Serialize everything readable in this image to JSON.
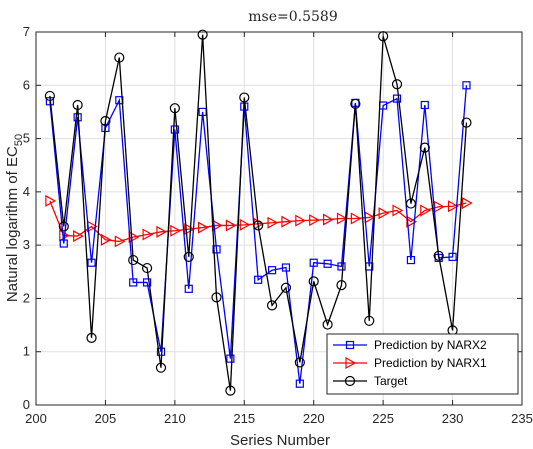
{
  "chart_data": {
    "type": "line",
    "title": "mse=0.5589",
    "xlabel": "Series Number",
    "ylabel_main": "Natural logarithm of EC",
    "ylabel_sub": "50",
    "xlim": [
      200,
      235
    ],
    "ylim": [
      0,
      7
    ],
    "xticks": [
      200,
      205,
      210,
      215,
      220,
      225,
      230,
      235
    ],
    "yticks": [
      0,
      1,
      2,
      3,
      4,
      5,
      6,
      7
    ],
    "grid": true,
    "legend_position": "bottom-right",
    "x": [
      201,
      202,
      203,
      204,
      205,
      206,
      207,
      208,
      209,
      210,
      211,
      212,
      213,
      214,
      215,
      216,
      217,
      218,
      219,
      220,
      221,
      222,
      223,
      224,
      225,
      226,
      227,
      228,
      229,
      230,
      231
    ],
    "series": [
      {
        "name": "Prediction by NARX2",
        "color": "#0000ff",
        "marker": "square",
        "values": [
          5.7,
          3.03,
          5.4,
          2.67,
          5.2,
          5.72,
          2.3,
          2.3,
          1.0,
          5.17,
          2.18,
          5.5,
          2.92,
          0.87,
          5.6,
          2.35,
          2.53,
          2.58,
          0.4,
          2.67,
          2.65,
          2.6,
          5.67,
          2.6,
          5.62,
          5.75,
          2.72,
          5.63,
          2.76,
          2.78,
          6.0
        ]
      },
      {
        "name": "Prediction by NARX1",
        "color": "#ff0000",
        "marker": "triangle-right",
        "values": [
          3.83,
          3.18,
          3.17,
          3.35,
          3.1,
          3.07,
          3.15,
          3.2,
          3.25,
          3.27,
          3.3,
          3.33,
          3.37,
          3.37,
          3.38,
          3.4,
          3.42,
          3.44,
          3.46,
          3.47,
          3.48,
          3.5,
          3.5,
          3.52,
          3.6,
          3.65,
          3.44,
          3.65,
          3.72,
          3.73,
          3.79
        ]
      },
      {
        "name": "Target",
        "color": "#000000",
        "marker": "circle",
        "values": [
          5.8,
          3.35,
          5.63,
          1.26,
          5.33,
          6.52,
          2.72,
          2.57,
          0.7,
          5.57,
          2.78,
          6.95,
          2.02,
          0.27,
          5.77,
          3.37,
          1.87,
          2.2,
          0.8,
          2.32,
          1.51,
          2.25,
          5.65,
          1.58,
          6.92,
          6.02,
          3.78,
          4.83,
          2.8,
          1.4,
          5.3
        ]
      }
    ]
  }
}
